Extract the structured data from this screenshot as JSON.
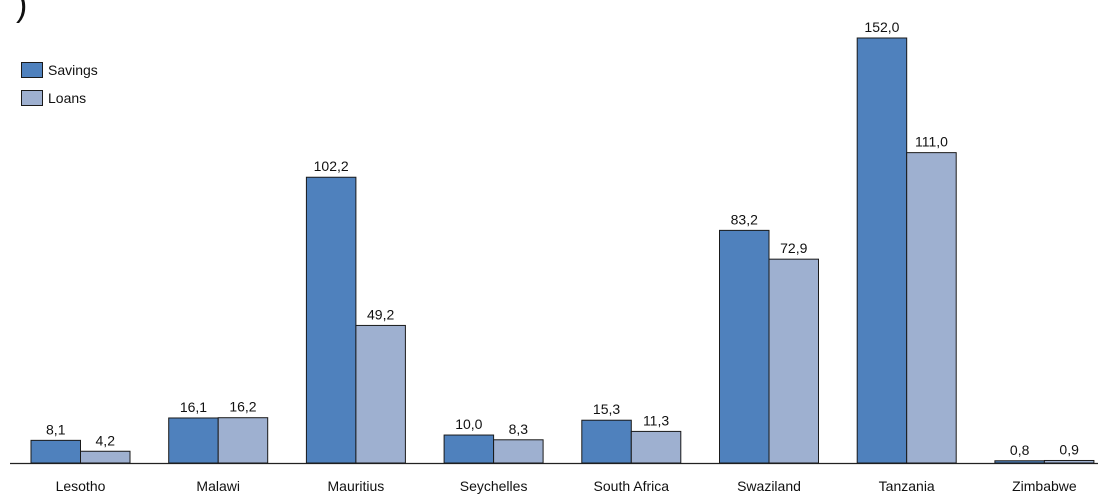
{
  "fragment": ")",
  "chart_data": {
    "type": "bar",
    "categories": [
      "Lesotho",
      "Malawi",
      "Mauritius",
      "Seychelles",
      "South Africa",
      "Swaziland",
      "Tanzania",
      "Zimbabwe"
    ],
    "series": [
      {
        "name": "Savings",
        "values": [
          8.1,
          16.1,
          102.2,
          10.0,
          15.3,
          83.2,
          152.0,
          0.8
        ],
        "labels": [
          "8,1",
          "16,1",
          "102,2",
          "10,0",
          "15,3",
          "83,2",
          "152,0",
          "0,8"
        ],
        "color": "#4F81BD"
      },
      {
        "name": "Loans",
        "values": [
          4.2,
          16.2,
          49.2,
          8.3,
          11.3,
          72.9,
          111.0,
          0.9
        ],
        "labels": [
          "4,2",
          "16,2",
          "49,2",
          "8,3",
          "11,3",
          "72,9",
          "111,0",
          "0,9"
        ],
        "color": "#9EB0D0"
      }
    ],
    "title": "",
    "xlabel": "",
    "ylabel": "",
    "ylim": [
      0,
      155
    ],
    "grid": false,
    "legend_position": "top-left"
  }
}
